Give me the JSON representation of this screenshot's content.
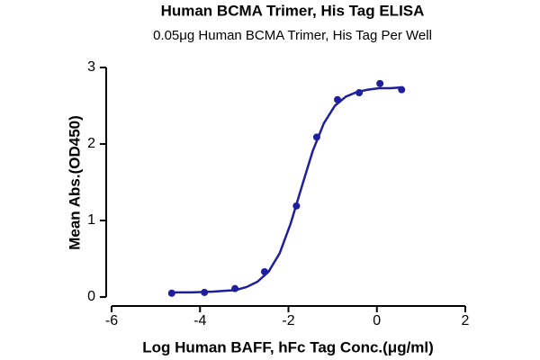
{
  "chart_data": {
    "type": "scatter",
    "title": "Human BCMA Trimer, His Tag ELISA",
    "subtitle": "0.05μg Human BCMA Trimer, His Tag Per Well",
    "x_label": "Log Human BAFF, hFc Tag Conc.(μg/ml)",
    "y_label": "Mean Abs.(OD450)",
    "color": "#1f1f9e",
    "points": {
      "x": [
        -4.64,
        -3.9,
        -3.21,
        -2.54,
        -1.82,
        -1.36,
        -0.89,
        -0.4,
        0.07,
        0.56
      ],
      "values": [
        0.05,
        0.06,
        0.11,
        0.33,
        1.19,
        2.09,
        2.58,
        2.67,
        2.79,
        2.71
      ]
    },
    "fit": {
      "x": [
        -4.7,
        -4.2,
        -3.7,
        -3.2,
        -2.95,
        -2.7,
        -2.45,
        -2.2,
        -1.95,
        -1.7,
        -1.45,
        -1.2,
        -0.95,
        -0.7,
        -0.45,
        -0.2,
        0.05,
        0.3,
        0.55
      ],
      "values": [
        0.06,
        0.06,
        0.07,
        0.09,
        0.13,
        0.2,
        0.33,
        0.57,
        0.96,
        1.44,
        1.91,
        2.27,
        2.5,
        2.62,
        2.68,
        2.71,
        2.73,
        2.73,
        2.74
      ]
    },
    "xlim": [
      -6,
      2
    ],
    "xticks": [
      -6,
      -4,
      -2,
      0,
      2
    ],
    "ylim": [
      0,
      3
    ],
    "yticks": [
      0,
      1,
      2,
      3
    ]
  }
}
